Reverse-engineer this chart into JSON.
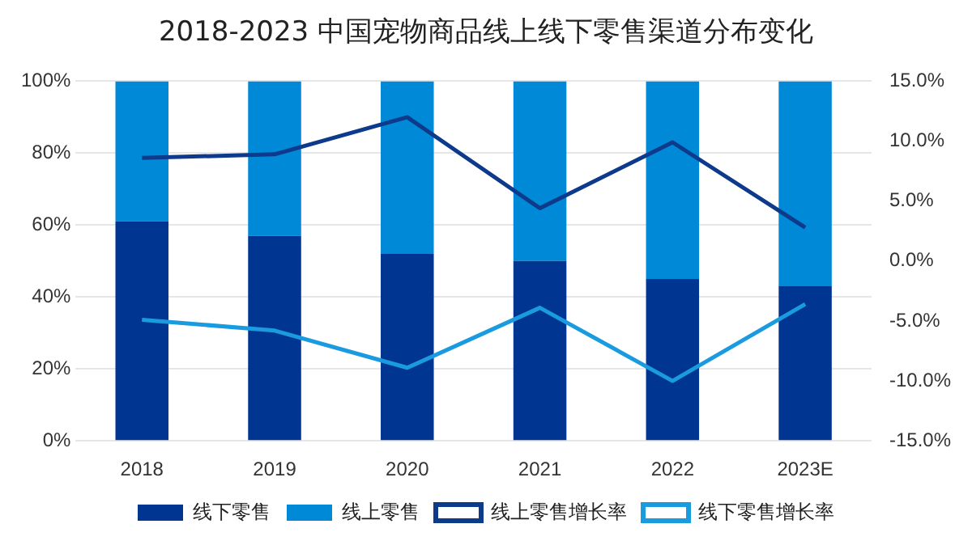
{
  "chart_data": {
    "type": "bar",
    "title": "2018-2023 中国宠物商品线上线下零售渠道分布变化",
    "categories": [
      "2018",
      "2019",
      "2020",
      "2021",
      "2022",
      "2023E"
    ],
    "stacked": true,
    "series": [
      {
        "name": "线下零售",
        "color": "#003592",
        "values": [
          61,
          57,
          52,
          50,
          45,
          43
        ]
      },
      {
        "name": "线上零售",
        "color": "#0089d6",
        "values": [
          39,
          43,
          48,
          50,
          55,
          57
        ]
      },
      {
        "name": "线上零售增长率",
        "type": "line",
        "axis": "y2",
        "color": "#0e3a8c",
        "values": [
          8.6,
          8.9,
          12.0,
          4.4,
          9.9,
          2.8
        ]
      },
      {
        "name": "线下零售增长率",
        "type": "line",
        "axis": "y2",
        "color": "#1a9be0",
        "values": [
          -4.9,
          -5.8,
          -8.9,
          -3.9,
          -10.0,
          -3.6
        ]
      }
    ],
    "ylim": [
      0,
      100
    ],
    "yticks": [
      {
        "value": 0,
        "label": "0%"
      },
      {
        "value": 20,
        "label": "20%"
      },
      {
        "value": 40,
        "label": "40%"
      },
      {
        "value": 60,
        "label": "60%"
      },
      {
        "value": 80,
        "label": "80%"
      },
      {
        "value": 100,
        "label": "100%"
      }
    ],
    "y2lim": [
      -15,
      15
    ],
    "y2ticks": [
      {
        "value": -15,
        "label": "-15.0%"
      },
      {
        "value": -10,
        "label": "-10.0%"
      },
      {
        "value": -5,
        "label": "-5.0%"
      },
      {
        "value": 0,
        "label": "0.0%"
      },
      {
        "value": 5,
        "label": "5.0%"
      },
      {
        "value": 10,
        "label": "10.0%"
      },
      {
        "value": 15,
        "label": "15.0%"
      }
    ],
    "grid": "y",
    "legend": "bottom",
    "marker": "none"
  }
}
